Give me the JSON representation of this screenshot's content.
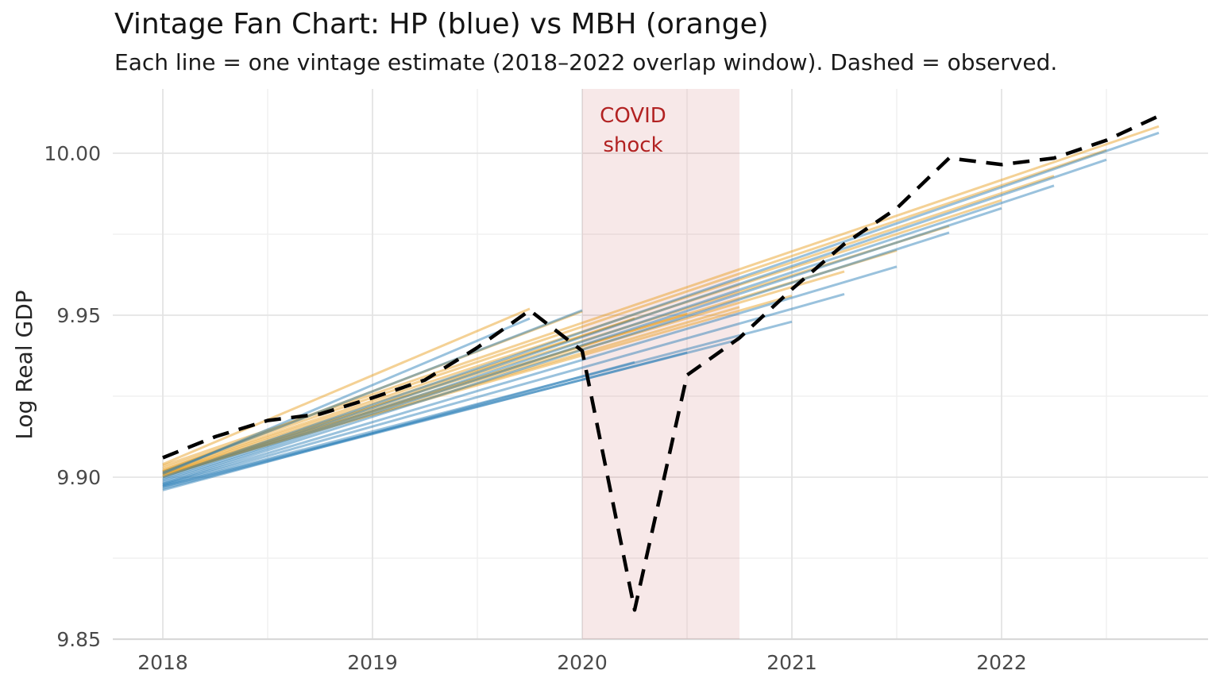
{
  "header": {
    "title": "Vintage Fan Chart: HP (blue) vs MBH (orange)",
    "subtitle": "Each line = one vintage estimate (2018–2022 overlap window). Dashed = observed."
  },
  "chart_data": {
    "type": "line",
    "title": "Vintage Fan Chart: HP (blue) vs MBH (orange)",
    "subtitle": "Each line = one vintage estimate (2018–2022 overlap window). Dashed = observed.",
    "xlabel": "",
    "ylabel": "Log Real GDP",
    "xlim": [
      2017.76,
      2022.99
    ],
    "ylim": [
      9.85,
      10.0199
    ],
    "grid": true,
    "legend_position": "none",
    "x_ticks": [
      2018,
      2019,
      2020,
      2021,
      2022
    ],
    "x_tick_labels": [
      "2018",
      "2019",
      "2020",
      "2021",
      "2022"
    ],
    "x_minor_ticks": [
      2018.5,
      2019.5,
      2020.5,
      2021.5,
      2022.5
    ],
    "y_ticks": [
      9.85,
      9.9,
      9.95,
      10.0
    ],
    "y_tick_labels": [
      "9.85",
      "9.90",
      "9.95",
      "10.00"
    ],
    "y_minor_ticks": [
      9.875,
      9.925,
      9.975
    ],
    "colors": {
      "hp": "#1f77b4",
      "mbh": "#e69a15",
      "observed": "#000000",
      "line_alpha": 0.45,
      "annotation_red": "#b22222",
      "band_fill": "rgba(178,34,34,0.10)",
      "grid_major": "#e4e4e4",
      "grid_minor": "#f0f0f0",
      "axis_line": "#d9d9d9",
      "tick_label": "#4a4a4a"
    },
    "covid_band": {
      "x_start": 2020.0,
      "x_end": 2020.75
    },
    "annotation": {
      "line1": "COVID",
      "line2": "shock",
      "x": 2020.24,
      "y_top": 10.013
    },
    "observed": {
      "name": "observed",
      "style": "dashed",
      "x": [
        2018.0,
        2018.25,
        2018.5,
        2018.75,
        2019.0,
        2019.25,
        2019.5,
        2019.75,
        2020.0,
        2020.25,
        2020.5,
        2020.75,
        2021.0,
        2021.25,
        2021.5,
        2021.75,
        2022.0,
        2022.25,
        2022.5,
        2022.75
      ],
      "y": [
        9.906,
        9.9125,
        9.9175,
        9.9195,
        9.9245,
        9.93,
        9.94,
        9.9515,
        9.939,
        9.859,
        9.9315,
        9.943,
        9.958,
        9.972,
        9.983,
        9.9985,
        9.9965,
        9.9985,
        10.004,
        10.0115
      ]
    },
    "series": [
      {
        "method": "MBH",
        "vintage_end": 2019.75,
        "y2018": 9.904,
        "y_end": 9.952
      },
      {
        "method": "MBH",
        "vintage_end": 2020.0,
        "y2018": 9.9018,
        "y_end": 9.9512
      },
      {
        "method": "MBH",
        "vintage_end": 2020.25,
        "y2018": 9.9,
        "y_end": 9.949
      },
      {
        "method": "MBH",
        "vintage_end": 2020.5,
        "y2018": 9.9002,
        "y_end": 9.9505
      },
      {
        "method": "MBH",
        "vintage_end": 2020.75,
        "y2018": 9.9005,
        "y_end": 9.9525
      },
      {
        "method": "MBH",
        "vintage_end": 2021.0,
        "y2018": 9.9008,
        "y_end": 9.956
      },
      {
        "method": "MBH",
        "vintage_end": 2021.25,
        "y2018": 9.901,
        "y_end": 9.9635
      },
      {
        "method": "MBH",
        "vintage_end": 2021.5,
        "y2018": 9.9012,
        "y_end": 9.97
      },
      {
        "method": "MBH",
        "vintage_end": 2021.75,
        "y2018": 9.9015,
        "y_end": 9.9775
      },
      {
        "method": "MBH",
        "vintage_end": 2022.0,
        "y2018": 9.9018,
        "y_end": 9.9855
      },
      {
        "method": "MBH",
        "vintage_end": 2022.25,
        "y2018": 9.9022,
        "y_end": 9.993
      },
      {
        "method": "MBH",
        "vintage_end": 2022.5,
        "y2018": 9.9028,
        "y_end": 10.001
      },
      {
        "method": "MBH",
        "vintage_end": 2022.75,
        "y2018": 9.9035,
        "y_end": 10.0083
      },
      {
        "method": "HP",
        "vintage_end": 2019.75,
        "y2018": 9.901,
        "y_end": 9.949
      },
      {
        "method": "HP",
        "vintage_end": 2020.0,
        "y2018": 9.9015,
        "y_end": 9.9515
      },
      {
        "method": "HP",
        "vintage_end": 2020.25,
        "y2018": 9.896,
        "y_end": 9.9355
      },
      {
        "method": "HP",
        "vintage_end": 2020.5,
        "y2018": 9.8965,
        "y_end": 9.9385
      },
      {
        "method": "HP",
        "vintage_end": 2020.75,
        "y2018": 9.897,
        "y_end": 9.9425
      },
      {
        "method": "HP",
        "vintage_end": 2021.0,
        "y2018": 9.8972,
        "y_end": 9.948
      },
      {
        "method": "HP",
        "vintage_end": 2021.25,
        "y2018": 9.8975,
        "y_end": 9.9565
      },
      {
        "method": "HP",
        "vintage_end": 2021.5,
        "y2018": 9.8978,
        "y_end": 9.965
      },
      {
        "method": "HP",
        "vintage_end": 2021.75,
        "y2018": 9.898,
        "y_end": 9.9755
      },
      {
        "method": "HP",
        "vintage_end": 2022.0,
        "y2018": 9.8985,
        "y_end": 9.983
      },
      {
        "method": "HP",
        "vintage_end": 2022.25,
        "y2018": 9.899,
        "y_end": 9.99
      },
      {
        "method": "HP",
        "vintage_end": 2022.5,
        "y2018": 9.8995,
        "y_end": 9.998
      },
      {
        "method": "HP",
        "vintage_end": 2022.75,
        "y2018": 9.9,
        "y_end": 10.0063
      }
    ]
  }
}
